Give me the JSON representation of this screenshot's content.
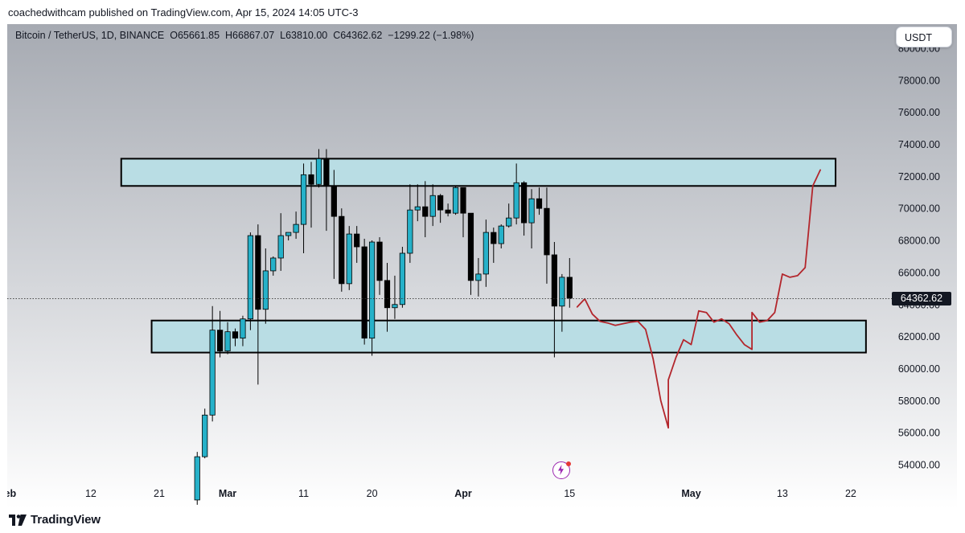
{
  "header": {
    "published": "coachedwithcam published on TradingView.com, Apr 15, 2024 14:05 UTC-3"
  },
  "legend": {
    "symbol": "Bitcoin / TetherUS, 1D, BINANCE",
    "open": "O65661.85",
    "high": "H66867.07",
    "low": "L63810.00",
    "close": "C64362.62",
    "change": "−1299.22 (−1.98%)"
  },
  "currency_button": "USDT",
  "current_price": "64362.62",
  "footer": {
    "brand": "TradingView"
  },
  "colors": {
    "bull": "#26b1c9",
    "bear": "#000000",
    "zone_fill": "#b9dde4",
    "projection": "#b3262c",
    "background_top": "#a6aab2",
    "background_bottom": "#ffffff"
  },
  "icons": [
    "tradingview-logo-icon",
    "lightning-bolt-icon"
  ],
  "chart_data": {
    "type": "candlestick",
    "title": "Bitcoin / TetherUS, 1D, BINANCE",
    "ylim": [
      53000,
      81500
    ],
    "yticks": [
      54000,
      56000,
      58000,
      60000,
      62000,
      64000,
      66000,
      68000,
      70000,
      72000,
      74000,
      76000,
      78000,
      80000
    ],
    "ytick_labels": [
      "54000.00",
      "56000.00",
      "58000.00",
      "60000.00",
      "62000.00",
      "64000.00",
      "66000.00",
      "68000.00",
      "70000.00",
      "72000.00",
      "74000.00",
      "76000.00",
      "78000.00",
      "80000.00"
    ],
    "x_range": [
      "2024-02-01",
      "2024-05-26"
    ],
    "xticks": [
      {
        "date": "2024-02-01",
        "label": "Feb"
      },
      {
        "date": "2024-02-12",
        "label": "12"
      },
      {
        "date": "2024-02-21",
        "label": "21"
      },
      {
        "date": "2024-03-01",
        "label": "Mar"
      },
      {
        "date": "2024-03-11",
        "label": "11"
      },
      {
        "date": "2024-03-20",
        "label": "20"
      },
      {
        "date": "2024-04-01",
        "label": "Apr"
      },
      {
        "date": "2024-04-15",
        "label": "15"
      },
      {
        "date": "2024-05-01",
        "label": "May"
      },
      {
        "date": "2024-05-13",
        "label": "13"
      },
      {
        "date": "2024-05-22",
        "label": "22"
      }
    ],
    "candles": [
      {
        "date": "2024-02-26",
        "o": 51800,
        "h": 54800,
        "l": 51500,
        "c": 54500
      },
      {
        "date": "2024-02-27",
        "o": 54500,
        "h": 57500,
        "l": 54400,
        "c": 57100
      },
      {
        "date": "2024-02-28",
        "o": 57100,
        "h": 63900,
        "l": 56700,
        "c": 62400
      },
      {
        "date": "2024-02-29",
        "o": 62400,
        "h": 63600,
        "l": 60700,
        "c": 61100
      },
      {
        "date": "2024-03-01",
        "o": 61100,
        "h": 62900,
        "l": 60900,
        "c": 62300
      },
      {
        "date": "2024-03-02",
        "o": 62300,
        "h": 62500,
        "l": 61400,
        "c": 61900
      },
      {
        "date": "2024-03-03",
        "o": 61900,
        "h": 63300,
        "l": 61400,
        "c": 63100
      },
      {
        "date": "2024-03-04",
        "o": 63100,
        "h": 68500,
        "l": 62400,
        "c": 68300
      },
      {
        "date": "2024-03-05",
        "o": 68300,
        "h": 69000,
        "l": 59000,
        "c": 63700
      },
      {
        "date": "2024-03-06",
        "o": 63700,
        "h": 67500,
        "l": 62800,
        "c": 66100
      },
      {
        "date": "2024-03-07",
        "o": 66100,
        "h": 67000,
        "l": 65800,
        "c": 66900
      },
      {
        "date": "2024-03-08",
        "o": 66900,
        "h": 69700,
        "l": 66100,
        "c": 68300
      },
      {
        "date": "2024-03-09",
        "o": 68300,
        "h": 68500,
        "l": 68000,
        "c": 68500
      },
      {
        "date": "2024-03-10",
        "o": 68500,
        "h": 69800,
        "l": 68100,
        "c": 69000
      },
      {
        "date": "2024-03-11",
        "o": 69000,
        "h": 72800,
        "l": 67200,
        "c": 72100
      },
      {
        "date": "2024-03-12",
        "o": 72100,
        "h": 72900,
        "l": 68800,
        "c": 71500
      },
      {
        "date": "2024-03-13",
        "o": 71500,
        "h": 73700,
        "l": 71300,
        "c": 73100
      },
      {
        "date": "2024-03-14",
        "o": 73100,
        "h": 73700,
        "l": 68600,
        "c": 71400
      },
      {
        "date": "2024-03-15",
        "o": 71400,
        "h": 72400,
        "l": 65600,
        "c": 69500
      },
      {
        "date": "2024-03-16",
        "o": 69500,
        "h": 70000,
        "l": 64800,
        "c": 65300
      },
      {
        "date": "2024-03-17",
        "o": 65300,
        "h": 68900,
        "l": 64900,
        "c": 68400
      },
      {
        "date": "2024-03-18",
        "o": 68400,
        "h": 68900,
        "l": 66600,
        "c": 67600
      },
      {
        "date": "2024-03-19",
        "o": 67600,
        "h": 68100,
        "l": 61500,
        "c": 61900
      },
      {
        "date": "2024-03-20",
        "o": 61900,
        "h": 68000,
        "l": 60800,
        "c": 67900
      },
      {
        "date": "2024-03-21",
        "o": 67900,
        "h": 68200,
        "l": 64600,
        "c": 65500
      },
      {
        "date": "2024-03-22",
        "o": 65500,
        "h": 66600,
        "l": 62300,
        "c": 63800
      },
      {
        "date": "2024-03-23",
        "o": 63800,
        "h": 65800,
        "l": 63100,
        "c": 64000
      },
      {
        "date": "2024-03-24",
        "o": 64000,
        "h": 67600,
        "l": 63800,
        "c": 67200
      },
      {
        "date": "2024-03-25",
        "o": 67200,
        "h": 71500,
        "l": 66600,
        "c": 69900
      },
      {
        "date": "2024-03-26",
        "o": 69900,
        "h": 71500,
        "l": 69200,
        "c": 70100
      },
      {
        "date": "2024-03-27",
        "o": 70100,
        "h": 71700,
        "l": 68200,
        "c": 69500
      },
      {
        "date": "2024-03-28",
        "o": 69500,
        "h": 71500,
        "l": 68900,
        "c": 70800
      },
      {
        "date": "2024-03-29",
        "o": 70800,
        "h": 70900,
        "l": 69100,
        "c": 69900
      },
      {
        "date": "2024-03-30",
        "o": 69900,
        "h": 70300,
        "l": 69500,
        "c": 69700
      },
      {
        "date": "2024-03-31",
        "o": 69700,
        "h": 71400,
        "l": 69600,
        "c": 71300
      },
      {
        "date": "2024-04-01",
        "o": 71300,
        "h": 71300,
        "l": 68200,
        "c": 69700
      },
      {
        "date": "2024-04-02",
        "o": 69700,
        "h": 69700,
        "l": 64600,
        "c": 65500
      },
      {
        "date": "2024-04-03",
        "o": 65500,
        "h": 66900,
        "l": 64500,
        "c": 65900
      },
      {
        "date": "2024-04-04",
        "o": 65900,
        "h": 69300,
        "l": 65100,
        "c": 68500
      },
      {
        "date": "2024-04-05",
        "o": 68500,
        "h": 68800,
        "l": 66600,
        "c": 67800
      },
      {
        "date": "2024-04-06",
        "o": 67800,
        "h": 69000,
        "l": 67500,
        "c": 68900
      },
      {
        "date": "2024-04-07",
        "o": 68900,
        "h": 70300,
        "l": 68800,
        "c": 69400
      },
      {
        "date": "2024-04-08",
        "o": 69400,
        "h": 72800,
        "l": 69000,
        "c": 71600
      },
      {
        "date": "2024-04-09",
        "o": 71600,
        "h": 71700,
        "l": 68300,
        "c": 69100
      },
      {
        "date": "2024-04-10",
        "o": 69100,
        "h": 71200,
        "l": 67500,
        "c": 70600
      },
      {
        "date": "2024-04-11",
        "o": 70600,
        "h": 71300,
        "l": 69600,
        "c": 70000
      },
      {
        "date": "2024-04-12",
        "o": 70000,
        "h": 71300,
        "l": 65300,
        "c": 67100
      },
      {
        "date": "2024-04-13",
        "o": 67100,
        "h": 67900,
        "l": 60700,
        "c": 63900
      },
      {
        "date": "2024-04-14",
        "o": 63900,
        "h": 65900,
        "l": 62300,
        "c": 65700
      },
      {
        "date": "2024-04-15",
        "o": 65700,
        "h": 66900,
        "l": 63800,
        "c": 64400
      }
    ],
    "zones": [
      {
        "name": "resistance",
        "date_start": "2024-02-16",
        "date_end": "2024-05-20",
        "low": 71400,
        "high": 73100
      },
      {
        "name": "support",
        "date_start": "2024-02-20",
        "date_end": "2024-05-24",
        "low": 61000,
        "high": 63000
      }
    ],
    "projection": {
      "color": "#b3262c",
      "points": [
        [
          "2024-04-16",
          63850
        ],
        [
          "2024-04-17",
          64350
        ],
        [
          "2024-04-18",
          63400
        ],
        [
          "2024-04-19",
          62950
        ],
        [
          "2024-04-20",
          62850
        ],
        [
          "2024-04-21",
          62700
        ],
        [
          "2024-04-22",
          62800
        ],
        [
          "2024-04-23",
          62900
        ],
        [
          "2024-04-24",
          62950
        ],
        [
          "2024-04-25",
          62450
        ],
        [
          "2024-04-26",
          60600
        ],
        [
          "2024-04-27",
          58000
        ],
        [
          "2024-04-28",
          56300
        ],
        [
          "2024-04-28",
          59300
        ],
        [
          "2024-04-29",
          60700
        ],
        [
          "2024-04-30",
          61800
        ],
        [
          "2024-05-01",
          61500
        ],
        [
          "2024-05-02",
          63600
        ],
        [
          "2024-05-03",
          63500
        ],
        [
          "2024-05-04",
          62900
        ],
        [
          "2024-05-05",
          63100
        ],
        [
          "2024-05-06",
          62800
        ],
        [
          "2024-05-07",
          62100
        ],
        [
          "2024-05-08",
          61500
        ],
        [
          "2024-05-09",
          61200
        ],
        [
          "2024-05-09",
          63500
        ],
        [
          "2024-05-10",
          62900
        ],
        [
          "2024-05-11",
          63000
        ],
        [
          "2024-05-12",
          63500
        ],
        [
          "2024-05-13",
          65900
        ],
        [
          "2024-05-14",
          65700
        ],
        [
          "2024-05-15",
          65800
        ],
        [
          "2024-05-16",
          66300
        ],
        [
          "2024-05-17",
          71400
        ],
        [
          "2024-05-18",
          72400
        ]
      ]
    },
    "current_price_line": 64362.62,
    "grid": false
  }
}
